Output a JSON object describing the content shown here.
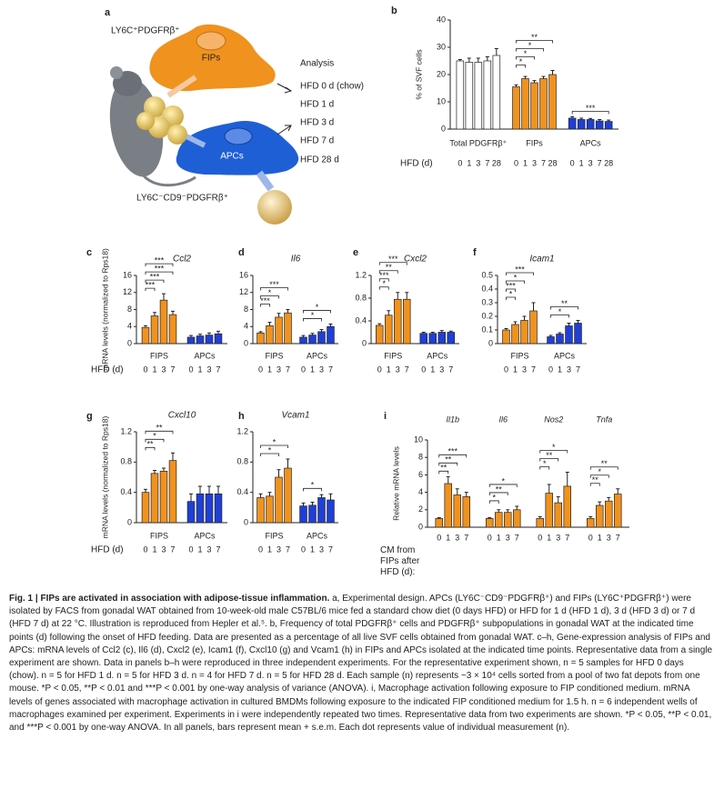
{
  "diagram": {
    "panel": "a",
    "fip_marker": "LY6C⁺PDGFRβ⁺",
    "fip_label": "FIPs",
    "apc_label": "APCs",
    "apc_marker": "LY6C⁻CD9⁻PDGFRβ⁺",
    "analysis_title": "Analysis",
    "timepoints": [
      "HFD 0 d (chow)",
      "HFD 1 d",
      "HFD 3 d",
      "HFD 7 d",
      "HFD 28 d"
    ]
  },
  "chart_data": [
    {
      "type": "bar",
      "panel": "b",
      "ylabel": "% of SVF cells",
      "ylim": [
        0,
        40
      ],
      "yticks": [
        0,
        10,
        20,
        30,
        40
      ],
      "xlabel": "HFD (d)",
      "categories": [
        "0",
        "1",
        "3",
        "7",
        "28"
      ],
      "groups": [
        {
          "name": "Total PDGFRβ⁺",
          "color": "#ffffff",
          "values": [
            25,
            24.5,
            24.5,
            25,
            27
          ],
          "errors": [
            0.5,
            1.5,
            1.5,
            1.5,
            2.5
          ]
        },
        {
          "name": "FIPs",
          "color": "#f0921e",
          "values": [
            15.5,
            18.5,
            17,
            18.5,
            20
          ],
          "errors": [
            0.7,
            0.8,
            0.8,
            0.8,
            1.5
          ],
          "brackets": [
            {
              "span": [
                0,
                4
              ],
              "text": "**"
            },
            {
              "span": [
                0,
                3
              ],
              "text": "*"
            },
            {
              "span": [
                0,
                2
              ],
              "text": "*"
            },
            {
              "span": [
                0,
                1
              ],
              "text": "*"
            }
          ]
        },
        {
          "name": "APCs",
          "color": "#1f3fd6",
          "values": [
            4,
            3.5,
            3.5,
            3,
            2.8
          ],
          "errors": [
            0.5,
            0.5,
            0.4,
            0.5,
            0.5
          ],
          "brackets": [
            {
              "span": [
                0,
                4
              ],
              "text": "***"
            }
          ]
        }
      ]
    },
    {
      "type": "bar",
      "panel": "c",
      "title": "Ccl2",
      "ylabel": "mRNA levels (normalized to Rps18)",
      "ylim": [
        0,
        16
      ],
      "yticks": [
        0,
        4,
        8,
        12,
        16
      ],
      "xlabel": "HFD (d)",
      "categories": [
        "0",
        "1",
        "3",
        "7"
      ],
      "groups": [
        {
          "name": "FIPS",
          "color": "#f0921e",
          "values": [
            3.8,
            6.5,
            10.2,
            6.8
          ],
          "errors": [
            0.4,
            0.8,
            1.5,
            0.8
          ],
          "brackets": [
            {
              "span": [
                0,
                3
              ],
              "text": "***"
            },
            {
              "span": [
                0,
                3
              ],
              "text": "***"
            },
            {
              "span": [
                0,
                2
              ],
              "text": "***"
            },
            {
              "span": [
                0,
                1
              ],
              "text": "***"
            }
          ]
        },
        {
          "name": "APCs",
          "color": "#1f3fd6",
          "values": [
            1.5,
            1.8,
            2.0,
            2.3
          ],
          "errors": [
            0.4,
            0.4,
            0.5,
            0.6
          ]
        }
      ]
    },
    {
      "type": "bar",
      "panel": "d",
      "title": "Il6",
      "ylim": [
        0,
        16
      ],
      "yticks": [
        0,
        4,
        8,
        12,
        16
      ],
      "categories": [
        "0",
        "1",
        "3",
        "7"
      ],
      "groups": [
        {
          "name": "FIPS",
          "color": "#f0921e",
          "values": [
            2.5,
            4.2,
            6.2,
            7.2
          ],
          "errors": [
            0.3,
            0.8,
            0.9,
            0.8
          ],
          "brackets": [
            {
              "span": [
                0,
                3
              ],
              "text": "***"
            },
            {
              "span": [
                0,
                2
              ],
              "text": "*"
            },
            {
              "span": [
                0,
                1
              ],
              "text": "***"
            }
          ]
        },
        {
          "name": "APCs",
          "color": "#1f3fd6",
          "values": [
            1.5,
            2.0,
            2.8,
            4.0
          ],
          "errors": [
            0.4,
            0.4,
            0.5,
            0.6
          ],
          "brackets": [
            {
              "span": [
                0,
                3
              ],
              "text": "*"
            },
            {
              "span": [
                0,
                2
              ],
              "text": "*"
            }
          ]
        }
      ]
    },
    {
      "type": "bar",
      "panel": "e",
      "title": "Cxcl2",
      "ylim": [
        0,
        1.2
      ],
      "yticks": [
        0,
        0.4,
        0.8,
        1.2
      ],
      "categories": [
        "0",
        "1",
        "3",
        "7"
      ],
      "groups": [
        {
          "name": "FIPS",
          "color": "#f0921e",
          "values": [
            0.32,
            0.5,
            0.78,
            0.78
          ],
          "errors": [
            0.03,
            0.08,
            0.12,
            0.12
          ],
          "brackets": [
            {
              "span": [
                0,
                3
              ],
              "text": "***"
            },
            {
              "span": [
                0,
                2
              ],
              "text": "**"
            },
            {
              "span": [
                0,
                1
              ],
              "text": "***"
            },
            {
              "span": [
                0,
                1
              ],
              "text": "*"
            }
          ]
        },
        {
          "name": "APCs",
          "color": "#1f3fd6",
          "values": [
            0.18,
            0.18,
            0.2,
            0.2
          ],
          "errors": [
            0.02,
            0.02,
            0.03,
            0.02
          ]
        }
      ]
    },
    {
      "type": "bar",
      "panel": "f",
      "title": "Icam1",
      "ylim": [
        0,
        0.5
      ],
      "yticks": [
        0,
        0.1,
        0.2,
        0.3,
        0.4,
        0.5
      ],
      "categories": [
        "0",
        "1",
        "3",
        "7"
      ],
      "groups": [
        {
          "name": "FIPS",
          "color": "#f0921e",
          "values": [
            0.1,
            0.14,
            0.17,
            0.24
          ],
          "errors": [
            0.01,
            0.02,
            0.03,
            0.06
          ],
          "brackets": [
            {
              "span": [
                0,
                3
              ],
              "text": "***"
            },
            {
              "span": [
                0,
                2
              ],
              "text": "*"
            },
            {
              "span": [
                0,
                1
              ],
              "text": "***"
            },
            {
              "span": [
                0,
                1
              ],
              "text": "*"
            }
          ]
        },
        {
          "name": "APCs",
          "color": "#1f3fd6",
          "values": [
            0.05,
            0.07,
            0.13,
            0.15
          ],
          "errors": [
            0.01,
            0.01,
            0.02,
            0.02
          ],
          "brackets": [
            {
              "span": [
                0,
                3
              ],
              "text": "**"
            },
            {
              "span": [
                0,
                2
              ],
              "text": "*"
            }
          ]
        }
      ]
    },
    {
      "type": "bar",
      "panel": "g",
      "title": "Cxcl10",
      "ylabel": "mRNA levels (normalized to Rps18)",
      "ylim": [
        0,
        1.2
      ],
      "yticks": [
        0,
        0.4,
        0.8,
        1.2
      ],
      "xlabel": "HFD (d)",
      "categories": [
        "0",
        "1",
        "3",
        "7"
      ],
      "groups": [
        {
          "name": "FIPS",
          "color": "#f0921e",
          "values": [
            0.4,
            0.65,
            0.68,
            0.82
          ],
          "errors": [
            0.04,
            0.04,
            0.04,
            0.1
          ],
          "brackets": [
            {
              "span": [
                0,
                3
              ],
              "text": "**"
            },
            {
              "span": [
                0,
                2
              ],
              "text": "*"
            },
            {
              "span": [
                0,
                1
              ],
              "text": "**"
            }
          ]
        },
        {
          "name": "APCs",
          "color": "#1f3fd6",
          "values": [
            0.28,
            0.38,
            0.38,
            0.38
          ],
          "errors": [
            0.1,
            0.1,
            0.1,
            0.1
          ]
        }
      ]
    },
    {
      "type": "bar",
      "panel": "h",
      "title": "Vcam1",
      "ylim": [
        0,
        1.2
      ],
      "yticks": [
        0,
        0.4,
        0.8,
        1.2
      ],
      "categories": [
        "0",
        "1",
        "3",
        "7"
      ],
      "groups": [
        {
          "name": "FIPS",
          "color": "#f0921e",
          "values": [
            0.33,
            0.35,
            0.6,
            0.72
          ],
          "errors": [
            0.05,
            0.05,
            0.1,
            0.12
          ],
          "brackets": [
            {
              "span": [
                0,
                3
              ],
              "text": "*"
            },
            {
              "span": [
                0,
                2
              ],
              "text": "*"
            }
          ]
        },
        {
          "name": "APCs",
          "color": "#1f3fd6",
          "values": [
            0.22,
            0.23,
            0.33,
            0.3
          ],
          "errors": [
            0.04,
            0.04,
            0.04,
            0.08
          ],
          "brackets": [
            {
              "span": [
                0,
                2
              ],
              "text": "*"
            }
          ]
        }
      ]
    },
    {
      "type": "bar",
      "panel": "i",
      "ylabel": "Relative mRNA levels",
      "ylim": [
        0,
        10
      ],
      "yticks": [
        0,
        2,
        4,
        6,
        8,
        10
      ],
      "xlabel": "CM from FIPs after HFD (d):",
      "categories": [
        "0",
        "1",
        "3",
        "7"
      ],
      "groups": [
        {
          "name": "Il1b",
          "color": "#f0921e",
          "values": [
            1,
            5,
            3.7,
            3.5
          ],
          "errors": [
            0.1,
            0.8,
            0.7,
            0.5
          ],
          "brackets": [
            {
              "span": [
                0,
                3
              ],
              "text": "***"
            },
            {
              "span": [
                0,
                2
              ],
              "text": "**"
            },
            {
              "span": [
                0,
                1
              ],
              "text": "**"
            }
          ]
        },
        {
          "name": "Il6",
          "color": "#f0921e",
          "values": [
            1,
            1.7,
            1.7,
            2
          ],
          "errors": [
            0.1,
            0.3,
            0.3,
            0.4
          ],
          "brackets": [
            {
              "span": [
                0,
                3
              ],
              "text": "*"
            },
            {
              "span": [
                0,
                2
              ],
              "text": "**"
            },
            {
              "span": [
                0,
                1
              ],
              "text": "*"
            }
          ]
        },
        {
          "name": "Nos2",
          "color": "#f0921e",
          "values": [
            1,
            3.9,
            2.8,
            4.7
          ],
          "errors": [
            0.2,
            1.0,
            0.7,
            1.6
          ],
          "brackets": [
            {
              "span": [
                0,
                3
              ],
              "text": "*"
            },
            {
              "span": [
                0,
                2
              ],
              "text": "**"
            },
            {
              "span": [
                0,
                1
              ],
              "text": "*"
            }
          ]
        },
        {
          "name": "Tnfa",
          "color": "#f0921e",
          "values": [
            1,
            2.5,
            3,
            3.8
          ],
          "errors": [
            0.2,
            0.4,
            0.4,
            0.6
          ],
          "brackets": [
            {
              "span": [
                0,
                3
              ],
              "text": "**"
            },
            {
              "span": [
                0,
                2
              ],
              "text": "*"
            },
            {
              "span": [
                0,
                1
              ],
              "text": "**"
            }
          ]
        }
      ]
    }
  ],
  "caption": {
    "title": "Fig. 1 | FIPs are activated in association with adipose-tissue inflammation.",
    "body": "a, Experimental design. APCs (LY6C⁻CD9⁻PDGFRβ⁺) and FIPs (LY6C⁺PDGFRβ⁺) were isolated by FACS from gonadal WAT obtained from 10-week-old male C57BL/6 mice fed a standard chow diet (0 days HFD) or HFD for 1 d (HFD 1 d), 3 d (HFD 3 d) or 7 d (HFD 7 d) at 22 °C. Illustration is reproduced from Hepler et al.⁵. b, Frequency of total PDGFRβ⁺ cells and PDGFRβ⁺ subpopulations in gonadal WAT at the indicated time points (d) following the onset of HFD feeding. Data are presented as a percentage of all live SVF cells obtained from gonadal WAT. c–h, Gene-expression analysis of FIPs and APCs: mRNA levels of Ccl2 (c), Il6 (d), Cxcl2 (e), Icam1 (f), Cxcl10 (g) and Vcam1 (h) in FIPs and APCs isolated at the indicated time points. Representative data from a single experiment are shown. Data in panels b–h were reproduced in three independent experiments. For the representative experiment shown, n = 5 samples for HFD 0 days (chow). n = 5 for HFD 1 d. n = 5 for HFD 3 d. n = 4 for HFD 7 d. n = 5 for HFD 28 d. Each sample (n) represents ~3 × 10⁴ cells sorted from a pool of two fat depots from one mouse. *P < 0.05, **P < 0.01 and ***P < 0.001 by one-way analysis of variance (ANOVA). i, Macrophage activation following exposure to FIP conditioned medium. mRNA levels of genes associated with macrophage activation in cultured BMDMs following exposure to the indicated FIP conditioned medium for 1.5 h. n = 6 independent wells of macrophages examined per experiment. Experiments in i were independently repeated two times. Representative data from two experiments are shown. *P < 0.05, **P < 0.01, and ***P < 0.001 by one-way ANOVA. In all panels, bars represent mean + s.e.m. Each dot represents value of individual measurement (n)."
  }
}
